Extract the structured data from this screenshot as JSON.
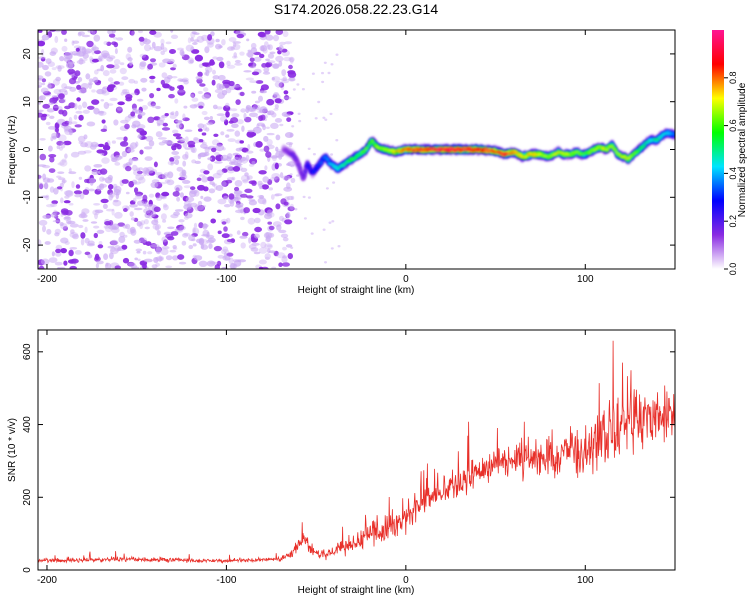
{
  "title": "S174.2026.058.22.23.G14",
  "colors": {
    "snr_line": "#e8302a",
    "speckle": "#8a2be2",
    "speckle_light": "#c9a8f3",
    "background": "#ffffff",
    "axis": "#000000"
  },
  "chart_data": [
    {
      "type": "heatmap",
      "title": "S174.2026.058.22.23.G14",
      "xlabel": "Height of straight line (km)",
      "ylabel": "Frequency (Hz)",
      "xlim": [
        -205,
        150
      ],
      "ylim": [
        -25,
        25
      ],
      "xticks": [
        -200,
        -100,
        0,
        100
      ],
      "xtick_labels": [
        "-200",
        "-100",
        "0",
        "100"
      ],
      "yticks": [
        -20,
        -10,
        0,
        10,
        20
      ],
      "ytick_labels": [
        "-20",
        "-10",
        "0",
        "10",
        "20"
      ],
      "noise_region_x": [
        -205,
        -65
      ],
      "ridge": {
        "x": [
          -68,
          -63,
          -60,
          -57,
          -55,
          -52,
          -48,
          -45,
          -42,
          -38,
          -34,
          -30,
          -26,
          -22,
          -19,
          -16,
          -12,
          -6,
          0,
          10,
          20,
          30,
          40,
          50,
          55,
          60,
          65,
          70,
          75,
          80,
          85,
          88,
          92,
          95,
          98,
          100,
          105,
          108,
          112,
          115,
          118,
          121,
          124,
          127,
          130,
          133,
          136,
          140,
          143,
          146,
          150
        ],
        "freq": [
          0,
          -1,
          -3,
          -6,
          -3,
          -5,
          -3,
          -1.5,
          -3,
          -4,
          -3,
          -2,
          -1,
          0,
          2,
          0.5,
          0,
          -0.5,
          0,
          0,
          0,
          0,
          0,
          -0.3,
          -1,
          -0.5,
          -1.5,
          -1,
          -1,
          -1.5,
          -0.5,
          -1,
          -1,
          -0.5,
          -1,
          -1,
          0,
          0.5,
          0,
          1,
          -1,
          -1.5,
          -2,
          -1,
          0,
          1,
          2,
          2,
          3,
          3.5,
          3
        ],
        "amplitude": [
          0.15,
          0.2,
          0.2,
          0.2,
          0.3,
          0.3,
          0.35,
          0.4,
          0.45,
          0.5,
          0.55,
          0.6,
          0.6,
          0.65,
          0.6,
          0.7,
          0.75,
          0.8,
          0.9,
          0.95,
          0.98,
          1.0,
          0.95,
          0.9,
          0.95,
          0.85,
          0.8,
          0.8,
          0.75,
          0.7,
          0.75,
          0.75,
          0.7,
          0.7,
          0.65,
          0.65,
          0.7,
          0.75,
          0.75,
          0.7,
          0.7,
          0.75,
          0.75,
          0.7,
          0.6,
          0.55,
          0.5,
          0.55,
          0.5,
          0.45,
          0.4
        ]
      },
      "colorbar": {
        "label": "Normalized spectral amplitude",
        "range": [
          0,
          1
        ],
        "ticks": [
          0.0,
          0.2,
          0.4,
          0.6,
          0.8
        ],
        "tick_labels": [
          "0.0",
          "0.2",
          "0.4",
          "0.6",
          "0.8"
        ],
        "stops": [
          "#ffffff",
          "#8a2be2",
          "#0000ff",
          "#00e5ff",
          "#00ff00",
          "#ffff00",
          "#ff0000",
          "#ff1493"
        ]
      }
    },
    {
      "type": "line",
      "title": "",
      "xlabel": "Height of straight line (km)",
      "ylabel": "SNR (10 * v/v)",
      "xlim": [
        -205,
        150
      ],
      "ylim": [
        0,
        660
      ],
      "xticks": [
        -200,
        -100,
        0,
        100
      ],
      "xtick_labels": [
        "-200",
        "-100",
        "0",
        "100"
      ],
      "yticks": [
        0,
        200,
        400,
        600
      ],
      "ytick_labels": [
        "0",
        "200",
        "400",
        "600"
      ],
      "series": [
        {
          "name": "SNR",
          "x": [
            -205,
            -180,
            -160,
            -140,
            -120,
            -100,
            -85,
            -70,
            -64,
            -60,
            -57,
            -55,
            -52,
            -48,
            -44,
            -38,
            -32,
            -25,
            -15,
            -5,
            5,
            15,
            25,
            35,
            45,
            55,
            65,
            75,
            80,
            85,
            90,
            95,
            100,
            105,
            110,
            115,
            120,
            125,
            130,
            135,
            140,
            145,
            150
          ],
          "y": [
            25,
            27,
            30,
            28,
            26,
            25,
            28,
            30,
            45,
            70,
            90,
            75,
            50,
            40,
            45,
            55,
            70,
            85,
            110,
            130,
            170,
            200,
            230,
            260,
            280,
            295,
            305,
            310,
            320,
            300,
            330,
            320,
            330,
            350,
            380,
            380,
            390,
            400,
            410,
            405,
            420,
            420,
            430
          ],
          "spread": [
            10,
            12,
            12,
            12,
            10,
            10,
            12,
            12,
            20,
            30,
            40,
            30,
            25,
            25,
            30,
            40,
            50,
            60,
            70,
            80,
            80,
            80,
            80,
            80,
            80,
            85,
            90,
            100,
            120,
            120,
            130,
            130,
            140,
            150,
            160,
            160,
            150,
            150,
            150,
            150,
            140,
            130,
            120
          ]
        }
      ]
    }
  ]
}
